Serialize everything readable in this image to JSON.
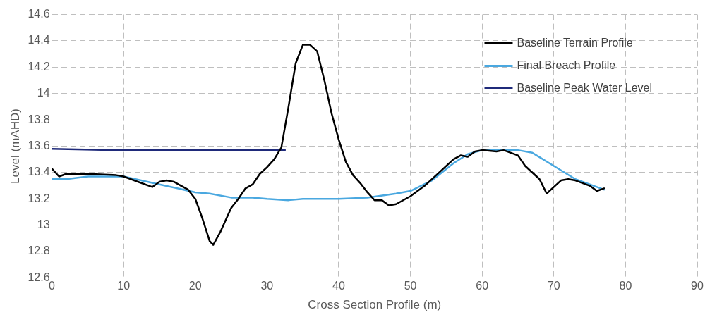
{
  "chart_data": {
    "type": "line",
    "xlabel": "Cross Section Profile (m)",
    "ylabel": "Level (mAHD)",
    "xlim": [
      0,
      90
    ],
    "xticks": [
      0,
      10,
      20,
      30,
      40,
      50,
      60,
      70,
      80,
      90
    ],
    "ylim": [
      12.6,
      14.6
    ],
    "yticks": [
      12.6,
      12.8,
      13,
      13.2,
      13.4,
      13.6,
      13.8,
      14,
      14.2,
      14.4,
      14.6
    ],
    "grid": true,
    "legend": "top right",
    "marker": "none",
    "line_style": "solid",
    "series": [
      {
        "name": "Baseline Terrain Profile",
        "color": "#000000",
        "x": [
          0,
          1,
          2,
          5,
          9,
          10,
          12,
          14,
          15,
          16,
          17,
          19,
          20,
          21,
          22,
          22.5,
          23.5,
          25,
          26,
          27,
          28,
          29,
          30,
          31,
          32,
          33,
          34,
          35,
          36,
          37,
          38,
          39,
          40,
          41,
          42,
          43,
          44,
          45,
          46,
          47,
          48,
          50,
          52,
          54,
          56,
          57,
          58,
          59,
          60,
          62,
          63,
          65,
          66,
          68,
          69,
          70,
          71,
          72,
          73,
          74,
          75,
          76,
          77
        ],
        "values": [
          13.43,
          13.37,
          13.39,
          13.39,
          13.38,
          13.37,
          13.33,
          13.29,
          13.33,
          13.34,
          13.33,
          13.27,
          13.2,
          13.05,
          12.88,
          12.85,
          12.95,
          13.13,
          13.2,
          13.28,
          13.31,
          13.39,
          13.44,
          13.5,
          13.59,
          13.9,
          14.23,
          14.37,
          14.37,
          14.32,
          14.1,
          13.85,
          13.65,
          13.48,
          13.38,
          13.32,
          13.25,
          13.19,
          13.19,
          13.15,
          13.16,
          13.22,
          13.3,
          13.4,
          13.5,
          13.53,
          13.52,
          13.56,
          13.57,
          13.56,
          13.57,
          13.53,
          13.45,
          13.35,
          13.24,
          13.29,
          13.34,
          13.35,
          13.34,
          13.32,
          13.3,
          13.26,
          13.28
        ]
      },
      {
        "name": "Final Breach Profile",
        "color": "#4aa8e0",
        "x": [
          0,
          2,
          5,
          10,
          15,
          20,
          22,
          25,
          28,
          30,
          33,
          35,
          40,
          44,
          48,
          50,
          53,
          56,
          58,
          60,
          65,
          67,
          70,
          73,
          75,
          77
        ],
        "values": [
          13.35,
          13.35,
          13.37,
          13.37,
          13.31,
          13.25,
          13.24,
          13.21,
          13.21,
          13.2,
          13.19,
          13.2,
          13.2,
          13.21,
          13.24,
          13.26,
          13.34,
          13.47,
          13.54,
          13.57,
          13.57,
          13.55,
          13.45,
          13.35,
          13.31,
          13.27
        ]
      },
      {
        "name": "Baseline Peak Water Level",
        "color": "#1f2a7a",
        "x": [
          0,
          8,
          32.5
        ],
        "values": [
          13.58,
          13.57,
          13.57
        ]
      }
    ]
  }
}
